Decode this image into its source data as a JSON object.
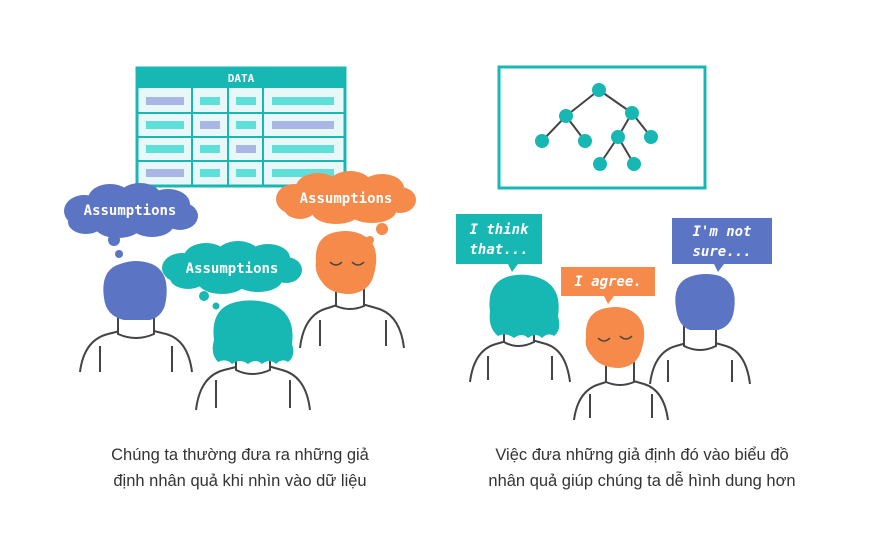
{
  "left_panel": {
    "table_title": "DATA",
    "thought_bubbles": [
      "Assumptions",
      "Assumptions",
      "Assumptions"
    ],
    "caption_lines": [
      "Chúng ta thường đưa ra những giả",
      "định nhân quả khi nhìn vào dữ liệu"
    ]
  },
  "right_panel": {
    "speech_bubbles": [
      {
        "lines": [
          "I think",
          "that..."
        ]
      },
      {
        "lines": [
          "I agree."
        ]
      },
      {
        "lines": [
          "I'm not",
          "sure..."
        ]
      }
    ],
    "caption_lines": [
      "Việc đưa những giả định đó vào biểu đồ",
      "nhân quả giúp chúng ta dễ hình dung hơn"
    ]
  },
  "colors": {
    "teal": "#17b8b4",
    "light_teal": "#5ee0d8",
    "blue": "#5b74c4",
    "lavender": "#aab6e4",
    "orange": "#f58a4b",
    "outline": "#444444"
  }
}
